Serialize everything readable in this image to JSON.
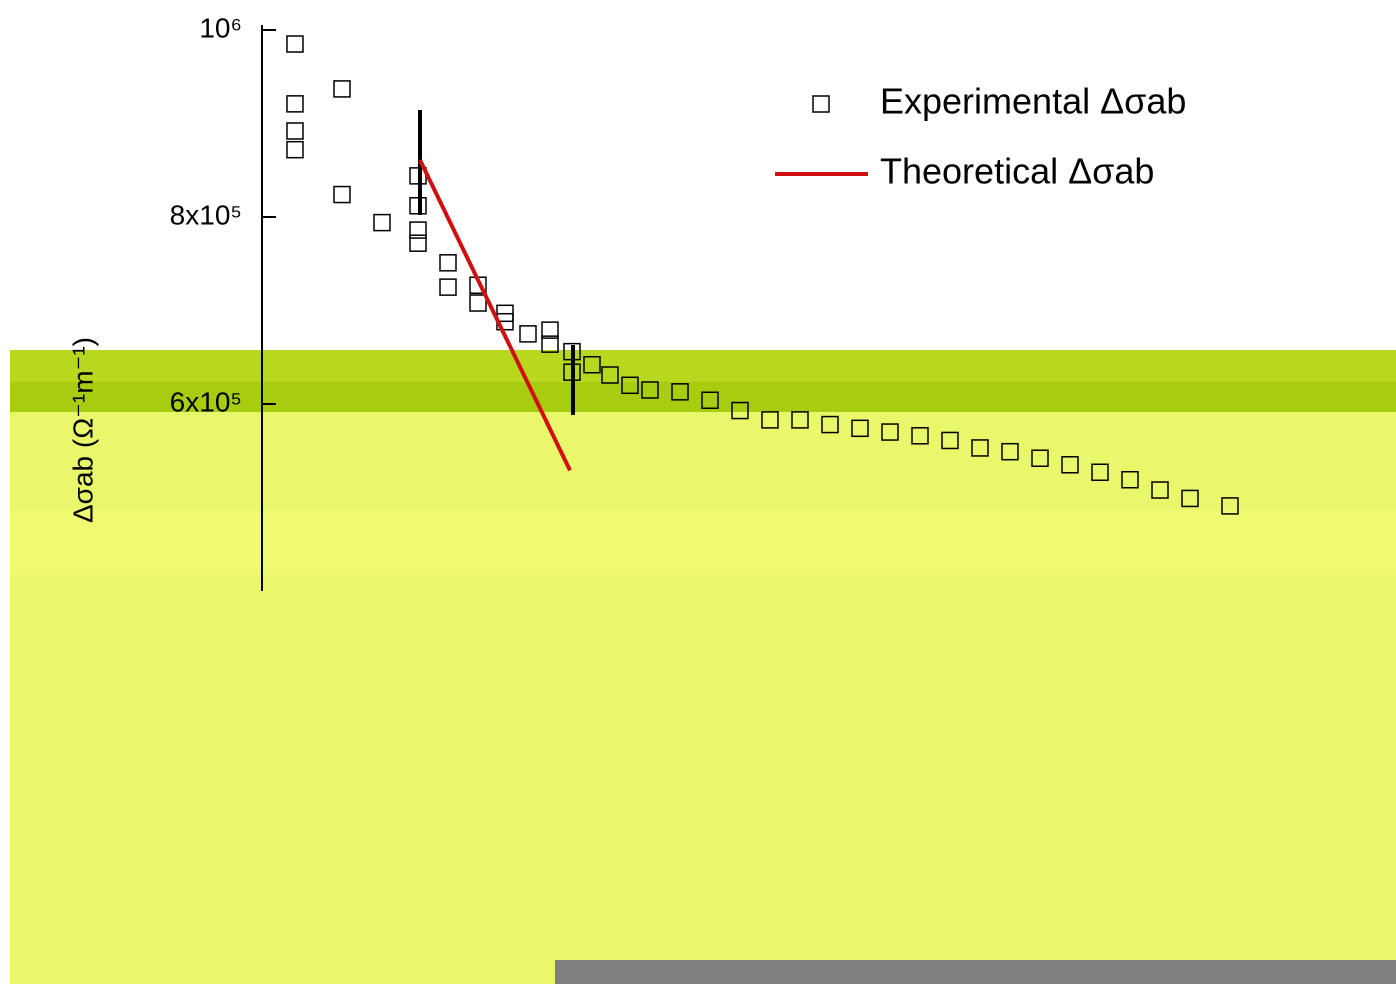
{
  "chart_data": {
    "type": "scatter",
    "ylabel": "Δσab (Ω⁻¹m⁻¹)",
    "xlim": [
      0,
      1120
    ],
    "ylim": [
      400000,
      1000000
    ],
    "yticks": [
      {
        "value": 1000000,
        "label": "10⁶"
      },
      {
        "value": 800000,
        "label": "8x10⁵"
      },
      {
        "value": 600000,
        "label": "6x10⁵"
      }
    ],
    "series": [
      {
        "name": "Experimental Δσab",
        "type": "scatter",
        "color": "#000000",
        "x": [
          33,
          33,
          33,
          33,
          80,
          80,
          120,
          156,
          156,
          156,
          156,
          186,
          186,
          216,
          216,
          243,
          243,
          266,
          288,
          288,
          310,
          310,
          330,
          348,
          368,
          388,
          418,
          448,
          478,
          508,
          538,
          568,
          598,
          628,
          658,
          688,
          718,
          748,
          778,
          808,
          838,
          868,
          898,
          928,
          968
        ],
        "values": [
          985000,
          921000,
          892000,
          872000,
          937000,
          824000,
          794000,
          844000,
          812000,
          786000,
          772000,
          751000,
          725000,
          727000,
          708000,
          697000,
          688000,
          675000,
          679000,
          664000,
          656000,
          634000,
          642000,
          631000,
          620000,
          615000,
          613000,
          604000,
          593000,
          583000,
          583000,
          578000,
          574000,
          570000,
          566000,
          561000,
          553000,
          549000,
          542000,
          535000,
          527000,
          519000,
          508000,
          499000,
          491000
        ]
      },
      {
        "name": "Theoretical Δσab",
        "type": "line",
        "color": "#d01010",
        "x": [
          158,
          308
        ],
        "values": [
          861000,
          529000
        ]
      }
    ]
  }
}
